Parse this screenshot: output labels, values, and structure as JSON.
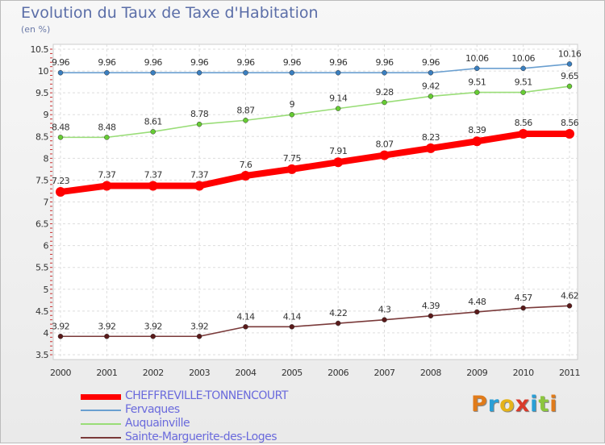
{
  "title": "Evolution du Taux de Taxe d'Habitation",
  "subtitle": "(en %)",
  "logo": {
    "text": "Proxiti",
    "letters": [
      "P",
      "r",
      "o",
      "x",
      "i",
      "t",
      "i"
    ],
    "colors": [
      "#e07b1a",
      "#2a9fd6",
      "#e5b31a",
      "#d93a2b",
      "#2a9fd6",
      "#8cc63e",
      "#e07b1a"
    ]
  },
  "chart_data": {
    "type": "line",
    "categories": [
      "2000",
      "2001",
      "2002",
      "2003",
      "2004",
      "2005",
      "2006",
      "2007",
      "2008",
      "2009",
      "2010",
      "2011"
    ],
    "ylim": [
      3.5,
      10.5
    ],
    "yticks": [
      "3.5",
      "4",
      "4.5",
      "5",
      "5.5",
      "6",
      "6.5",
      "7",
      "7.5",
      "8",
      "8.5",
      "9",
      "9.5",
      "10",
      "10.5"
    ],
    "grid": true,
    "legend_position": "bottom-left",
    "series": [
      {
        "name": "CHEFFREVILLE-TONNENCOURT",
        "color": "#ff0000",
        "marker": "#ff0000",
        "values": [
          7.23,
          7.37,
          7.37,
          7.37,
          7.6,
          7.75,
          7.91,
          8.07,
          8.23,
          8.39,
          8.56,
          8.56
        ],
        "labels": [
          "7.23",
          "7.37",
          "7.37",
          "7.37",
          "7.6",
          "7.75",
          "7.91",
          "8.07",
          "8.23",
          "8.39",
          "8.56",
          "8.56"
        ]
      },
      {
        "name": "Fervaques",
        "color": "#6a9fd0",
        "marker": "#3a7fc0",
        "values": [
          9.96,
          9.96,
          9.96,
          9.96,
          9.96,
          9.96,
          9.96,
          9.96,
          9.96,
          10.06,
          10.06,
          10.16
        ],
        "labels": [
          "9.96",
          "9.96",
          "9.96",
          "9.96",
          "9.96",
          "9.96",
          "9.96",
          "9.96",
          "9.96",
          "10.06",
          "10.06",
          "10.16"
        ]
      },
      {
        "name": "Auquainville",
        "color": "#99dd77",
        "marker": "#66cc33",
        "values": [
          8.48,
          8.48,
          8.61,
          8.78,
          8.87,
          9,
          9.14,
          9.28,
          9.42,
          9.51,
          9.51,
          9.65
        ],
        "labels": [
          "8.48",
          "8.48",
          "8.61",
          "8.78",
          "8.87",
          "9",
          "9.14",
          "9.28",
          "9.42",
          "9.51",
          "9.51",
          "9.65"
        ]
      },
      {
        "name": "Sainte-Marguerite-des-Loges",
        "color": "#7a3a3a",
        "marker": "#5a1a1a",
        "values": [
          3.92,
          3.92,
          3.92,
          3.92,
          4.14,
          4.14,
          4.22,
          4.3,
          4.39,
          4.48,
          4.57,
          4.62
        ],
        "labels": [
          "3.92",
          "3.92",
          "3.92",
          "3.92",
          "4.14",
          "4.14",
          "4.22",
          "4.3",
          "4.39",
          "4.48",
          "4.57",
          "4.62"
        ]
      }
    ]
  }
}
